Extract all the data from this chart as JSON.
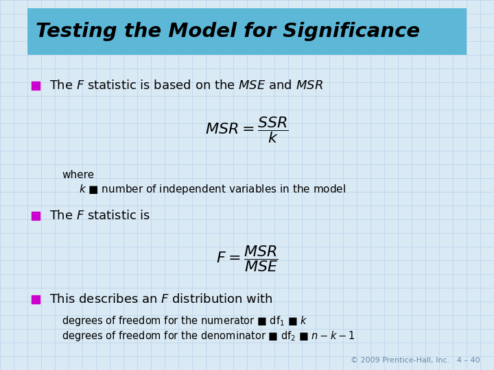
{
  "title": "Testing the Model for Significance",
  "title_bg_color": "#5db8d8",
  "title_font_color": "#000000",
  "bg_color": "#daeaf5",
  "grid_color": "#b8d0e8",
  "bullet_color": "#cc00cc",
  "text_color": "#000000",
  "footer": "© 2009 Prentice-Hall, Inc.   4 – 40",
  "footer_color": "#6688aa"
}
